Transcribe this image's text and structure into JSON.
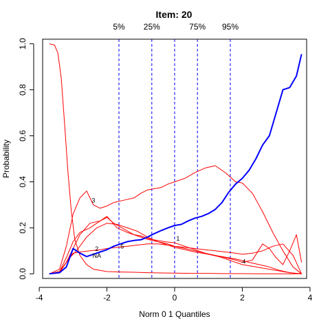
{
  "chart_data": {
    "type": "line",
    "title": "Item:  20",
    "xlabel": "Norm 0 1 Quantiles",
    "ylabel": "Probability",
    "xlim": [
      -3.9,
      3.9
    ],
    "ylim": [
      -0.02,
      1.02
    ],
    "x_ticks": [
      -4,
      -2,
      0,
      2,
      4
    ],
    "y_ticks": [
      0.0,
      0.2,
      0.4,
      0.6,
      0.8,
      1.0
    ],
    "grid": false,
    "legend": "none",
    "quantile_lines": [
      {
        "label": "5%",
        "x": -1.645
      },
      {
        "label": "25%",
        "x": -0.674
      },
      {
        "label": "",
        "x": 0.0
      },
      {
        "label": "75%",
        "x": 0.674
      },
      {
        "label": "95%",
        "x": 1.645
      }
    ],
    "series": [
      {
        "color": "#0000ff",
        "x": [
          -3.7,
          -3.4,
          -3.2,
          -3.0,
          -2.8,
          -2.6,
          -2.4,
          -2.2,
          -2.0,
          -1.8,
          -1.6,
          -1.4,
          -1.2,
          -1.0,
          -0.8,
          -0.6,
          -0.4,
          -0.2,
          0.0,
          0.2,
          0.4,
          0.6,
          0.8,
          1.0,
          1.2,
          1.4,
          1.6,
          1.8,
          2.0,
          2.2,
          2.4,
          2.6,
          2.8,
          3.0,
          3.2,
          3.4,
          3.6,
          3.75
        ],
        "y": [
          0.0,
          0.005,
          0.03,
          0.11,
          0.09,
          0.075,
          0.085,
          0.095,
          0.105,
          0.12,
          0.13,
          0.14,
          0.145,
          0.148,
          0.16,
          0.175,
          0.188,
          0.2,
          0.21,
          0.215,
          0.23,
          0.242,
          0.25,
          0.262,
          0.28,
          0.31,
          0.355,
          0.39,
          0.415,
          0.45,
          0.5,
          0.56,
          0.6,
          0.7,
          0.8,
          0.81,
          0.86,
          0.955
        ]
      },
      {
        "label": "1",
        "color": "#ff0000",
        "x": [
          -3.7,
          -3.4,
          -3.2,
          -3.0,
          -2.8,
          -2.5,
          -2.2,
          -2.0,
          -1.8,
          -1.5,
          -1.2,
          -1.0,
          -0.7,
          -0.5,
          -0.3,
          0.0,
          0.3,
          0.6,
          1.0,
          1.3,
          1.6,
          2.0,
          2.4,
          2.8,
          3.0,
          3.2,
          3.4,
          3.6,
          3.75
        ],
        "y": [
          0.0,
          0.01,
          0.07,
          0.14,
          0.18,
          0.2,
          0.23,
          0.245,
          0.22,
          0.195,
          0.17,
          0.165,
          0.15,
          0.145,
          0.14,
          0.135,
          0.12,
          0.105,
          0.085,
          0.075,
          0.06,
          0.04,
          0.03,
          0.02,
          0.015,
          0.01,
          0.005,
          0.002,
          0.0
        ]
      },
      {
        "label": "2",
        "color": "#ff0000",
        "x": [
          -3.7,
          -3.4,
          -3.1,
          -2.9,
          -2.6,
          -2.3,
          -2.0,
          -1.7,
          -1.4,
          -1.1,
          -0.8,
          -0.5,
          -0.2,
          0.0,
          0.3,
          0.6,
          1.0,
          1.4,
          1.8,
          2.2,
          2.5,
          2.8,
          3.1,
          3.4,
          3.6,
          3.75
        ],
        "y": [
          0.0,
          0.01,
          0.07,
          0.1,
          0.16,
          0.2,
          0.22,
          0.215,
          0.2,
          0.185,
          0.16,
          0.14,
          0.125,
          0.115,
          0.105,
          0.095,
          0.085,
          0.075,
          0.065,
          0.05,
          0.04,
          0.03,
          0.015,
          0.005,
          0.002,
          0.0
        ]
      },
      {
        "label": "3",
        "color": "#ff0000",
        "x": [
          -3.7,
          -3.4,
          -3.2,
          -3.0,
          -2.8,
          -2.6,
          -2.4,
          -2.2,
          -2.0,
          -1.8,
          -1.5,
          -1.2,
          -1.0,
          -0.8,
          -0.6,
          -0.4,
          -0.2,
          0.0,
          0.3,
          0.6,
          0.9,
          1.2,
          1.5,
          1.8,
          2.0,
          2.3,
          2.6,
          2.9,
          3.2,
          3.5,
          3.75
        ],
        "y": [
          0.0,
          0.02,
          0.12,
          0.26,
          0.33,
          0.36,
          0.3,
          0.285,
          0.295,
          0.31,
          0.32,
          0.33,
          0.35,
          0.365,
          0.37,
          0.375,
          0.39,
          0.4,
          0.415,
          0.44,
          0.46,
          0.47,
          0.44,
          0.4,
          0.395,
          0.35,
          0.27,
          0.18,
          0.1,
          0.03,
          0.0
        ]
      },
      {
        "label": "4",
        "color": "#ff0000",
        "x": [
          -3.7,
          -3.4,
          -3.2,
          -3.0,
          -2.8,
          -2.5,
          -2.2,
          -2.0,
          -1.7,
          -1.4,
          -1.1,
          -0.8,
          -0.5,
          -0.2,
          0.0,
          0.3,
          0.6,
          0.9,
          1.2,
          1.5,
          1.8,
          2.0,
          2.3,
          2.6,
          2.8,
          3.0,
          3.2,
          3.4,
          3.6,
          3.75
        ],
        "y": [
          0.0,
          0.005,
          0.05,
          0.11,
          0.17,
          0.22,
          0.23,
          0.25,
          0.2,
          0.18,
          0.165,
          0.15,
          0.14,
          0.13,
          0.12,
          0.11,
          0.1,
          0.09,
          0.08,
          0.07,
          0.06,
          0.05,
          0.06,
          0.13,
          0.11,
          0.07,
          0.04,
          0.1,
          0.17,
          0.05
        ]
      },
      {
        "label": "5",
        "color": "#ff0000",
        "x": [
          -3.7,
          -3.4,
          -3.2,
          -3.0,
          -2.8,
          -2.5,
          -2.2,
          -2.0,
          -1.7,
          -1.4,
          -1.1,
          -0.8,
          -0.5,
          -0.2,
          0.0,
          0.3,
          0.6,
          0.9,
          1.2,
          1.5,
          1.8,
          2.0,
          2.3,
          2.6,
          2.9,
          3.2,
          3.5,
          3.75
        ],
        "y": [
          0.0,
          0.01,
          0.05,
          0.09,
          0.095,
          0.1,
          0.105,
          0.11,
          0.115,
          0.12,
          0.125,
          0.13,
          0.13,
          0.125,
          0.12,
          0.115,
          0.11,
          0.105,
          0.1,
          0.095,
          0.09,
          0.085,
          0.09,
          0.1,
          0.12,
          0.13,
          0.08,
          0.0
        ]
      },
      {
        "label": "NA",
        "color": "#ff0000",
        "x": [
          -3.7,
          -3.55,
          -3.45,
          -3.35,
          -3.25,
          -3.15,
          -3.05,
          -2.95,
          -2.8,
          -2.6,
          -2.4,
          -2.2,
          -2.0,
          -1.6,
          -1.2,
          -0.8,
          -0.4,
          0.0,
          0.5,
          1.0,
          1.5,
          2.0,
          2.5,
          3.0,
          3.5,
          3.75
        ],
        "y": [
          1.0,
          0.995,
          0.96,
          0.85,
          0.65,
          0.44,
          0.27,
          0.15,
          0.08,
          0.04,
          0.02,
          0.015,
          0.01,
          0.008,
          0.007,
          0.005,
          0.004,
          0.003,
          0.002,
          0.002,
          0.001,
          0.001,
          0.0,
          0.0,
          0.0,
          0.0
        ]
      }
    ],
    "curve_labels": [
      {
        "text": "1",
        "x": 0.1,
        "y": 0.145
      },
      {
        "text": "2",
        "x": -2.3,
        "y": 0.1
      },
      {
        "text": "NA",
        "x": -2.3,
        "y": 0.07
      },
      {
        "text": "3",
        "x": -2.4,
        "y": 0.31
      },
      {
        "text": "4",
        "x": 2.05,
        "y": 0.045
      },
      {
        "text": "5",
        "x": -1.55,
        "y": 0.11
      }
    ]
  }
}
